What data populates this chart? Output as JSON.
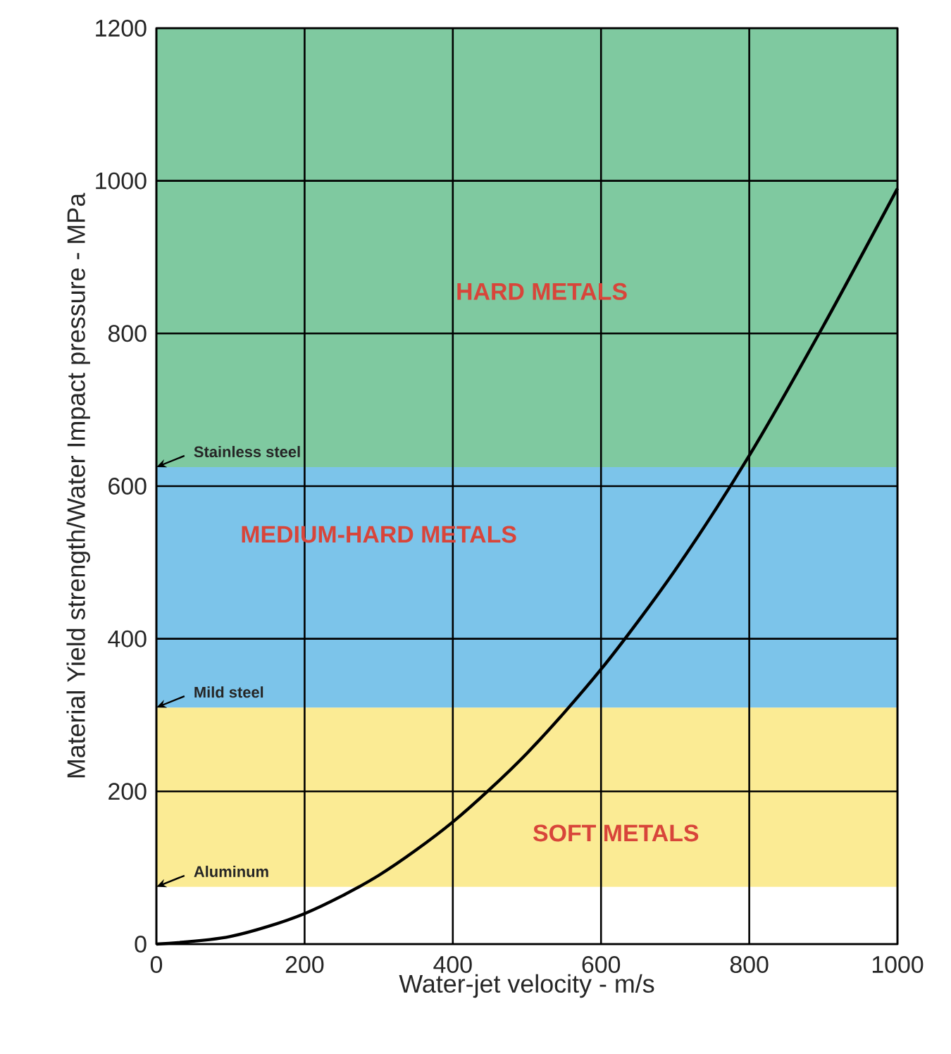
{
  "chart_data": {
    "type": "line",
    "xlabel": "Water-jet velocity - m/s",
    "ylabel": "Material Yield strength/Water Impact pressure - MPa",
    "x": [
      0,
      100,
      200,
      300,
      400,
      500,
      600,
      700,
      800,
      900,
      1000
    ],
    "series": [
      {
        "color": "#000000",
        "values": [
          0,
          10,
          40,
          90,
          160,
          250,
          360,
          490,
          640,
          810,
          990
        ]
      }
    ],
    "xlim": [
      0,
      1000
    ],
    "ylim": [
      0,
      1200
    ],
    "xticks": [
      0,
      200,
      400,
      600,
      800,
      1000
    ],
    "yticks": [
      0,
      200,
      400,
      600,
      800,
      1000,
      1200
    ],
    "grid": true,
    "line_style": "solid",
    "bands": [
      {
        "axis": "y",
        "from": 75,
        "to": 310,
        "label": "SOFT METALS",
        "color": "#fbeb94"
      },
      {
        "axis": "y",
        "from": 310,
        "to": 625,
        "label": "MEDIUM-HARD METALS",
        "color": "#7cc4ea"
      },
      {
        "axis": "y",
        "from": 625,
        "to": 1200,
        "label": "HARD METALS",
        "color": "#7fc9a0"
      }
    ],
    "annotations": [
      {
        "text": "Stainless steel",
        "y": 625
      },
      {
        "text": "Mild steel",
        "y": 310
      },
      {
        "text": "Aluminum",
        "y": 75
      }
    ]
  }
}
